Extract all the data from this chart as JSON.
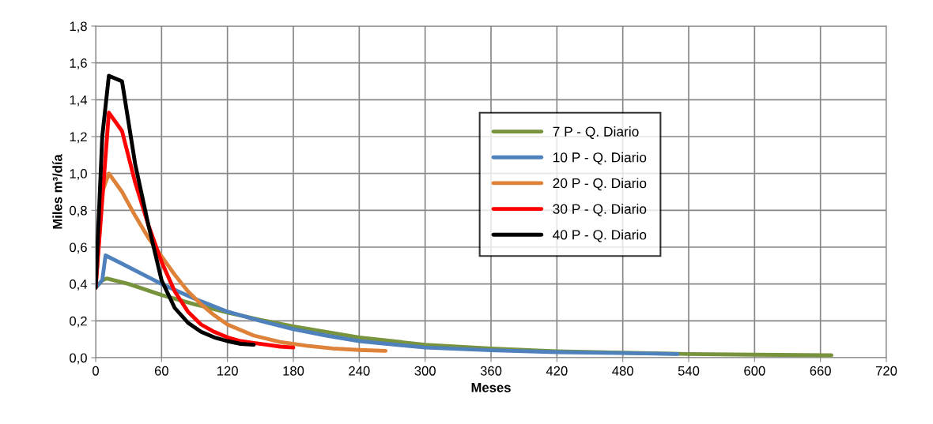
{
  "chart_data": {
    "type": "line",
    "xlabel": "Meses",
    "ylabel": "Miles m³/día",
    "xlim": [
      0,
      720
    ],
    "xticks": [
      0,
      60,
      120,
      180,
      240,
      300,
      360,
      420,
      480,
      540,
      600,
      660,
      720
    ],
    "ylim": [
      0,
      1.8
    ],
    "yticks": [
      {
        "value": 0,
        "label": "0,0"
      },
      {
        "value": 0.2,
        "label": "0,2"
      },
      {
        "value": 0.4,
        "label": "0,4"
      },
      {
        "value": 0.6,
        "label": "0,6"
      },
      {
        "value": 0.8,
        "label": "0,8"
      },
      {
        "value": 1.0,
        "label": "1,0"
      },
      {
        "value": 1.2,
        "label": "1,2"
      },
      {
        "value": 1.4,
        "label": "1,4"
      },
      {
        "value": 1.6,
        "label": "1,6"
      },
      {
        "value": 1.8,
        "label": "1,8"
      }
    ],
    "grid": true,
    "legend": "right",
    "marker": "none",
    "line_style": "solid",
    "series": [
      {
        "name": "7 P - Q. Diario",
        "color": "#77933c",
        "x": [
          0,
          6,
          10,
          30,
          60,
          90,
          120,
          150,
          180,
          210,
          240,
          300,
          360,
          420,
          480,
          540,
          600,
          670
        ],
        "values": [
          0.38,
          0.42,
          0.43,
          0.4,
          0.34,
          0.29,
          0.245,
          0.205,
          0.17,
          0.14,
          0.11,
          0.07,
          0.05,
          0.035,
          0.027,
          0.02,
          0.016,
          0.013
        ]
      },
      {
        "name": "10 P - Q. Diario",
        "color": "#4f81bd",
        "x": [
          0,
          6,
          9,
          24,
          60,
          90,
          120,
          150,
          180,
          210,
          240,
          300,
          360,
          420,
          480,
          530
        ],
        "values": [
          0.38,
          0.42,
          0.555,
          0.51,
          0.4,
          0.32,
          0.25,
          0.2,
          0.155,
          0.12,
          0.09,
          0.055,
          0.04,
          0.03,
          0.025,
          0.02
        ]
      },
      {
        "name": "20 P - Q. Diario",
        "color": "#dd8238",
        "x": [
          0,
          6,
          12,
          24,
          36,
          48,
          60,
          72,
          84,
          96,
          108,
          120,
          144,
          168,
          192,
          216,
          240,
          264
        ],
        "values": [
          0.38,
          0.9,
          1.0,
          0.9,
          0.77,
          0.65,
          0.55,
          0.45,
          0.36,
          0.29,
          0.23,
          0.18,
          0.12,
          0.085,
          0.065,
          0.05,
          0.042,
          0.037
        ]
      },
      {
        "name": "30 P - Q. Diario",
        "color": "#ff0000",
        "x": [
          0,
          12,
          24,
          36,
          48,
          60,
          72,
          84,
          96,
          108,
          120,
          132,
          144,
          156,
          168,
          180
        ],
        "values": [
          0.38,
          1.33,
          1.23,
          0.95,
          0.72,
          0.52,
          0.36,
          0.25,
          0.18,
          0.14,
          0.11,
          0.09,
          0.08,
          0.07,
          0.06,
          0.055
        ]
      },
      {
        "name": "40 P - Q. Diario",
        "color": "#000000",
        "x": [
          0,
          6,
          12,
          24,
          36,
          48,
          60,
          72,
          84,
          96,
          108,
          120,
          132,
          144
        ],
        "values": [
          0.38,
          1.2,
          1.53,
          1.5,
          1.05,
          0.72,
          0.42,
          0.27,
          0.19,
          0.14,
          0.11,
          0.09,
          0.075,
          0.07
        ]
      }
    ]
  }
}
